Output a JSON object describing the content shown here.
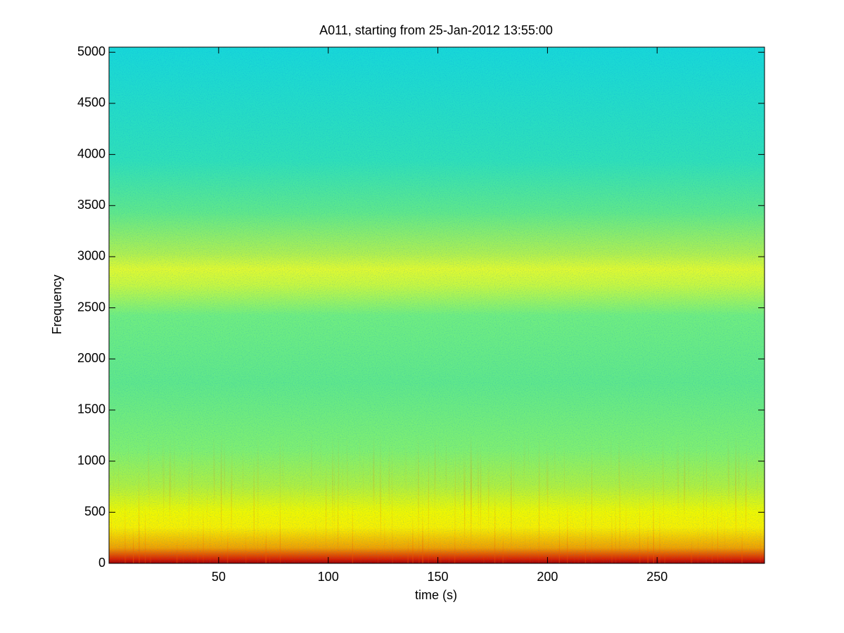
{
  "chart_data": {
    "type": "spectrogram",
    "title": "A011, starting from 25-Jan-2012 13:55:00",
    "xlabel": "time (s)",
    "ylabel": "Frequency",
    "xlim": [
      0,
      299
    ],
    "ylim": [
      0,
      5050
    ],
    "xticks": [
      50,
      100,
      150,
      200,
      250
    ],
    "yticks": [
      0,
      500,
      1000,
      1500,
      2000,
      2500,
      3000,
      3500,
      4000,
      4500,
      5000
    ],
    "colormap": "jet"
  }
}
